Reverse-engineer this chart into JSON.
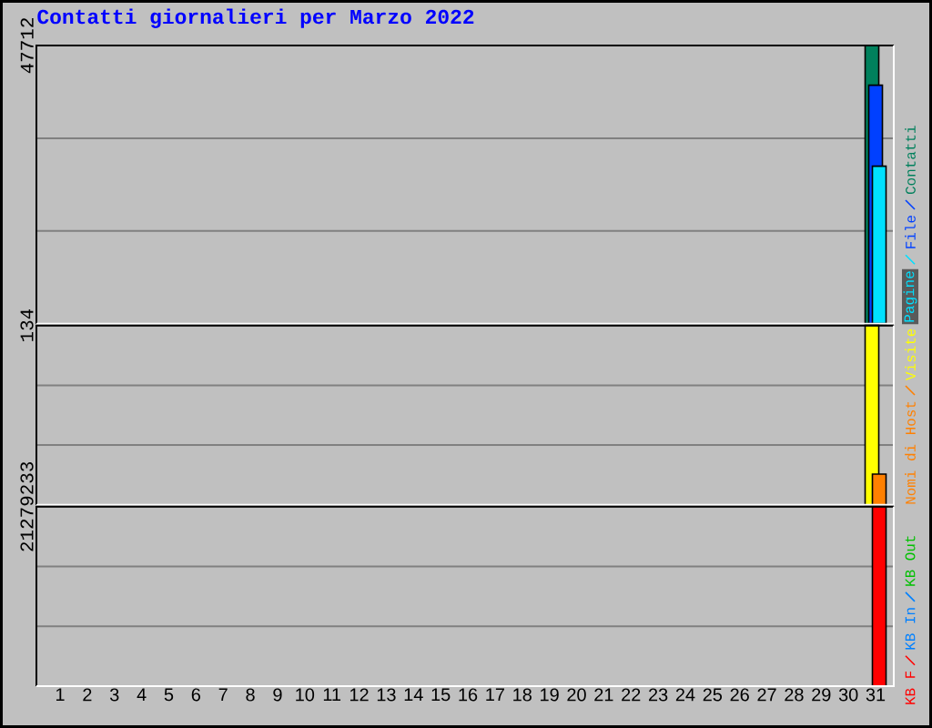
{
  "chart_data": [
    {
      "type": "bar",
      "title": "Contatti giornalieri per Marzo 2022",
      "categories": [
        "1",
        "2",
        "3",
        "4",
        "5",
        "6",
        "7",
        "8",
        "9",
        "10",
        "11",
        "12",
        "13",
        "14",
        "15",
        "16",
        "17",
        "18",
        "19",
        "20",
        "21",
        "22",
        "23",
        "24",
        "25",
        "26",
        "27",
        "28",
        "29",
        "30",
        "31"
      ],
      "series": [
        {
          "name": "Pagine",
          "color": "#00e0ff",
          "values": [
            null,
            null,
            null,
            null,
            null,
            null,
            null,
            null,
            null,
            null,
            null,
            null,
            null,
            null,
            null,
            null,
            null,
            null,
            null,
            null,
            null,
            null,
            null,
            null,
            null,
            null,
            null,
            null,
            null,
            null,
            27000
          ]
        },
        {
          "name": "File",
          "color": "#0040ff",
          "values": [
            null,
            null,
            null,
            null,
            null,
            null,
            null,
            null,
            null,
            null,
            null,
            null,
            null,
            null,
            null,
            null,
            null,
            null,
            null,
            null,
            null,
            null,
            null,
            null,
            null,
            null,
            null,
            null,
            null,
            null,
            40900
          ]
        },
        {
          "name": "Contatti",
          "color": "#00805c",
          "values": [
            null,
            null,
            null,
            null,
            null,
            null,
            null,
            null,
            null,
            null,
            null,
            null,
            null,
            null,
            null,
            null,
            null,
            null,
            null,
            null,
            null,
            null,
            null,
            null,
            null,
            null,
            null,
            null,
            null,
            null,
            47712
          ]
        }
      ],
      "ylim": [
        0,
        47712
      ],
      "yticks": [
        {
          "value": 15904,
          "label": null
        },
        {
          "value": 31808,
          "label": null
        },
        47712
      ],
      "grid": "y",
      "legend": "right",
      "tick_labels": "y"
    },
    {
      "type": "bar",
      "categories": [
        "1",
        "2",
        "3",
        "4",
        "5",
        "6",
        "7",
        "8",
        "9",
        "10",
        "11",
        "12",
        "13",
        "14",
        "15",
        "16",
        "17",
        "18",
        "19",
        "20",
        "21",
        "22",
        "23",
        "24",
        "25",
        "26",
        "27",
        "28",
        "29",
        "30",
        "31"
      ],
      "series": [
        {
          "name": "Nomi di Host",
          "color": "#ff8000",
          "values": [
            null,
            null,
            null,
            null,
            null,
            null,
            null,
            null,
            null,
            null,
            null,
            null,
            null,
            null,
            null,
            null,
            null,
            null,
            null,
            null,
            null,
            null,
            null,
            null,
            null,
            null,
            null,
            null,
            null,
            null,
            23
          ]
        },
        {
          "name": "Visite",
          "color": "#ffff00",
          "values": [
            null,
            null,
            null,
            null,
            null,
            null,
            null,
            null,
            null,
            null,
            null,
            null,
            null,
            null,
            null,
            null,
            null,
            null,
            null,
            null,
            null,
            null,
            null,
            null,
            null,
            null,
            null,
            null,
            null,
            null,
            134
          ]
        }
      ],
      "ylim": [
        0,
        134
      ],
      "yticks": [
        {
          "value": 44.7,
          "label": null
        },
        {
          "value": 89.3,
          "label": null
        },
        134
      ],
      "grid": "y",
      "legend": "right",
      "tick_labels": "y"
    },
    {
      "type": "bar",
      "categories": [
        "1",
        "2",
        "3",
        "4",
        "5",
        "6",
        "7",
        "8",
        "9",
        "10",
        "11",
        "12",
        "13",
        "14",
        "15",
        "16",
        "17",
        "18",
        "19",
        "20",
        "21",
        "22",
        "23",
        "24",
        "25",
        "26",
        "27",
        "28",
        "29",
        "30",
        "31"
      ],
      "series": [
        {
          "name": "KB F",
          "color": "#ff0000",
          "values": [
            null,
            null,
            null,
            null,
            null,
            null,
            null,
            null,
            null,
            null,
            null,
            null,
            null,
            null,
            null,
            null,
            null,
            null,
            null,
            null,
            null,
            null,
            null,
            null,
            null,
            null,
            null,
            null,
            null,
            null,
            21279233
          ]
        },
        {
          "name": "KB In",
          "color": "#0080ff",
          "values": [
            null,
            null,
            null,
            null,
            null,
            null,
            null,
            null,
            null,
            null,
            null,
            null,
            null,
            null,
            null,
            null,
            null,
            null,
            null,
            null,
            null,
            null,
            null,
            null,
            null,
            null,
            null,
            null,
            null,
            null,
            null
          ]
        },
        {
          "name": "KB Out",
          "color": "#00c000",
          "values": [
            null,
            null,
            null,
            null,
            null,
            null,
            null,
            null,
            null,
            null,
            null,
            null,
            null,
            null,
            null,
            null,
            null,
            null,
            null,
            null,
            null,
            null,
            null,
            null,
            null,
            null,
            null,
            null,
            null,
            null,
            null
          ]
        }
      ],
      "ylim": [
        0,
        21279233
      ],
      "yticks": [
        {
          "value": 7093078,
          "label": null
        },
        {
          "value": 14186155,
          "label": null
        },
        21279233
      ],
      "grid": "y",
      "legend": "right"
    }
  ]
}
